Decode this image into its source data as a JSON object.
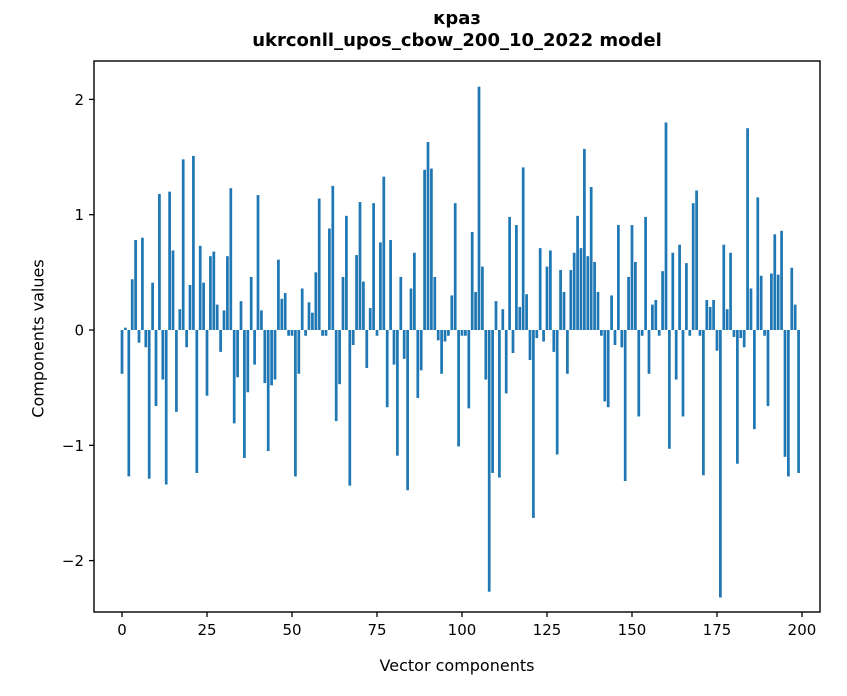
{
  "chart_data": {
    "type": "bar",
    "title": "краз",
    "subtitle": "ukrconll_upos_cbow_200_10_2022 model",
    "xlabel": "Vector components",
    "ylabel": "Components values",
    "x_ticks": [
      0,
      25,
      50,
      75,
      100,
      125,
      150,
      175,
      200
    ],
    "x_tick_labels": [
      "0",
      "25",
      "50",
      "75",
      "100",
      "125",
      "150",
      "175",
      "200"
    ],
    "y_ticks": [
      2,
      1,
      0,
      -1,
      -2
    ],
    "y_tick_labels": [
      "2",
      "1",
      "0",
      "−1",
      "−2"
    ],
    "xlim": [
      -8.24,
      205.3
    ],
    "ylim": [
      -2.446,
      2.333
    ],
    "grid": false,
    "legend": "none",
    "bar_color": "#1f77b4",
    "n_components": 200,
    "values": [
      -0.38,
      0.02,
      -1.27,
      0.44,
      0.78,
      -0.11,
      0.8,
      -0.15,
      -1.29,
      0.41,
      -0.66,
      1.18,
      -0.43,
      -1.34,
      1.2,
      0.69,
      -0.71,
      0.18,
      1.48,
      -0.15,
      0.39,
      1.51,
      -1.24,
      0.73,
      0.41,
      -0.57,
      0.64,
      0.68,
      0.22,
      -0.19,
      0.17,
      0.64,
      1.23,
      -0.81,
      -0.41,
      0.25,
      -1.11,
      -0.54,
      0.46,
      -0.3,
      1.17,
      0.17,
      -0.46,
      -1.05,
      -0.48,
      -0.43,
      0.61,
      0.27,
      0.32,
      -0.05,
      -0.05,
      -1.27,
      -0.38,
      0.36,
      -0.05,
      0.24,
      0.15,
      0.5,
      1.14,
      -0.05,
      -0.05,
      0.88,
      1.25,
      -0.79,
      -0.47,
      0.46,
      0.99,
      -1.35,
      -0.13,
      0.65,
      1.11,
      0.42,
      -0.33,
      0.19,
      1.1,
      -0.05,
      0.76,
      1.33,
      -0.67,
      0.78,
      -0.3,
      -1.09,
      0.46,
      -0.25,
      -1.39,
      0.36,
      0.67,
      -0.59,
      -0.35,
      1.39,
      1.63,
      1.4,
      0.46,
      -0.09,
      -0.38,
      -0.1,
      -0.05,
      0.3,
      1.1,
      -1.01,
      -0.05,
      -0.05,
      -0.68,
      0.85,
      0.33,
      2.11,
      0.55,
      -0.43,
      -2.27,
      -1.24,
      0.25,
      -1.28,
      0.18,
      -0.55,
      0.98,
      -0.2,
      0.91,
      0.2,
      1.41,
      0.31,
      -0.26,
      -1.63,
      -0.07,
      0.71,
      -0.1,
      0.55,
      0.69,
      -0.19,
      -1.08,
      0.52,
      0.33,
      -0.38,
      0.52,
      0.67,
      0.99,
      0.71,
      1.57,
      0.64,
      1.24,
      0.59,
      0.33,
      -0.05,
      -0.62,
      -0.67,
      0.3,
      -0.13,
      0.91,
      -0.15,
      -1.31,
      0.46,
      0.91,
      0.59,
      -0.75,
      -0.05,
      0.98,
      -0.38,
      0.22,
      0.26,
      -0.05,
      0.51,
      1.8,
      -1.03,
      0.67,
      -0.43,
      0.74,
      -0.75,
      0.58,
      -0.05,
      1.1,
      1.21,
      -0.05,
      -1.26,
      0.26,
      0.2,
      0.26,
      -0.18,
      -2.32,
      0.74,
      0.18,
      0.67,
      -0.06,
      -1.16,
      -0.07,
      -0.15,
      1.75,
      0.36,
      -0.86,
      1.15,
      0.47,
      -0.05,
      -0.66,
      0.49,
      0.83,
      0.48,
      0.86,
      -1.1,
      -1.27,
      0.54,
      0.22,
      -1.24
    ]
  }
}
